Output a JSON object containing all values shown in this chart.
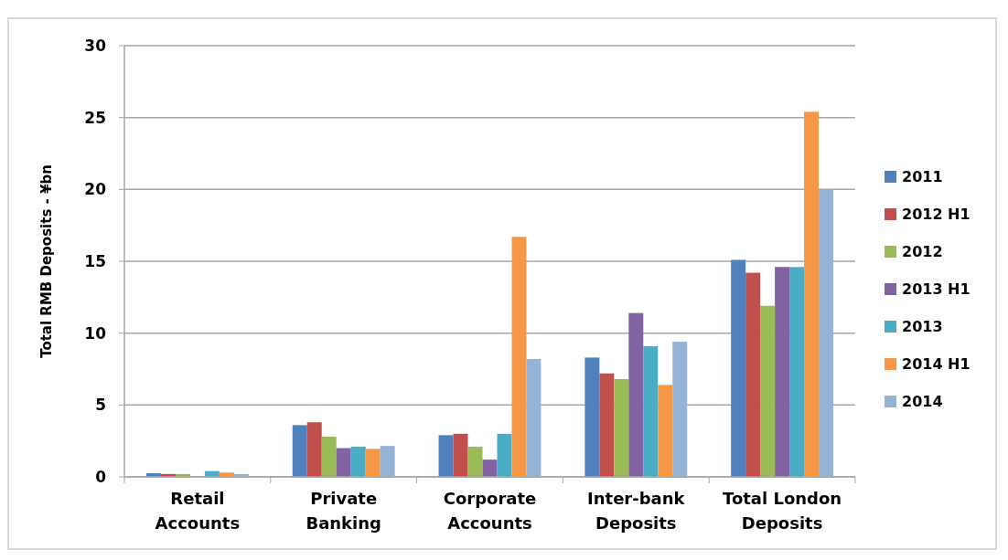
{
  "chart_data": {
    "type": "bar",
    "ylabel": "Total RMB Deposits - ¥bn",
    "categories": [
      "Retail\nAccounts",
      "Private\nBanking",
      "Corporate\nAccounts",
      "Inter-bank\nDeposits",
      "Total London\nDeposits"
    ],
    "series": [
      {
        "name": "2011",
        "color": "#4f81bd",
        "values": [
          0.25,
          3.6,
          2.9,
          8.3,
          15.1
        ]
      },
      {
        "name": "2012 H1",
        "color": "#c0504d",
        "values": [
          0.2,
          3.8,
          3.0,
          7.2,
          14.2
        ]
      },
      {
        "name": "2012",
        "color": "#9bbb59",
        "values": [
          0.2,
          2.8,
          2.1,
          6.8,
          11.9
        ]
      },
      {
        "name": "2013 H1",
        "color": "#8064a2",
        "values": [
          null,
          2.0,
          1.2,
          11.4,
          14.6
        ]
      },
      {
        "name": "2013",
        "color": "#4bacc6",
        "values": [
          0.4,
          2.1,
          3.0,
          9.1,
          14.6
        ]
      },
      {
        "name": "2014 H1",
        "color": "#f79646",
        "values": [
          0.3,
          1.95,
          16.7,
          6.4,
          25.4
        ]
      },
      {
        "name": "2014",
        "color": "#95b3d7",
        "values": [
          0.2,
          2.15,
          8.2,
          9.4,
          20.0
        ]
      }
    ],
    "ylim": [
      0,
      30
    ],
    "yticks": [
      0,
      5,
      10,
      15,
      20,
      25,
      30
    ],
    "grid": "y",
    "legend": "right"
  }
}
